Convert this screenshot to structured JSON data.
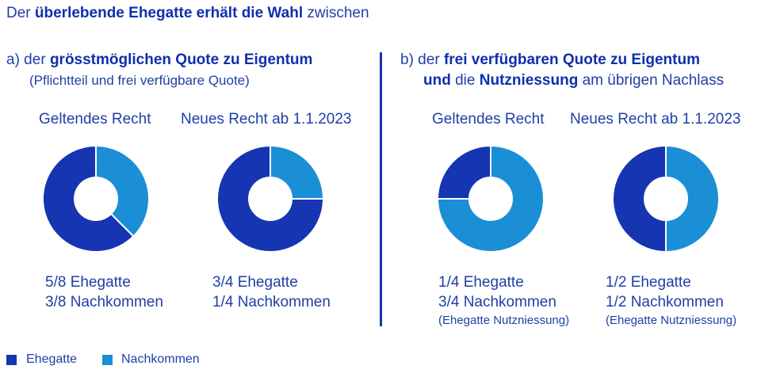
{
  "headline": {
    "pre": "Der ",
    "bold": "überlebende Ehegatte erhält die Wahl",
    "post": " zwischen"
  },
  "colors": {
    "ehegatte": "#1535b3",
    "nachkommen": "#1a8fd6",
    "text": "#1f3fa6"
  },
  "section_a": {
    "marker": "a)",
    "pre": " der ",
    "bold": "grösstmöglichen Quote zu Eigentum",
    "subtitle": "(Pflichtteil und frei verfügbare Quote)"
  },
  "section_b": {
    "marker": "b)",
    "pre": " der ",
    "bold1": "frei verfügbaren Quote zu Eigentum",
    "bold2": "und",
    "mid": " die ",
    "bold3": "Nutzniessung",
    "post": " am übrigen Nachlass"
  },
  "chart_data": [
    {
      "type": "pie",
      "title": "Geltendes Recht",
      "categories": [
        "Ehegatte",
        "Nachkommen"
      ],
      "values": [
        0.625,
        0.375
      ],
      "lines": [
        "5/8 Ehegatte",
        "3/8 Nachkommen"
      ],
      "note": ""
    },
    {
      "type": "pie",
      "title": "Neues Recht ab 1.1.2023",
      "categories": [
        "Ehegatte",
        "Nachkommen"
      ],
      "values": [
        0.75,
        0.25
      ],
      "lines": [
        "3/4 Ehegatte",
        "1/4 Nachkommen"
      ],
      "note": ""
    },
    {
      "type": "pie",
      "title": "Geltendes Recht",
      "categories": [
        "Ehegatte",
        "Nachkommen"
      ],
      "values": [
        0.25,
        0.75
      ],
      "lines": [
        "1/4 Ehegatte",
        "3/4 Nachkommen"
      ],
      "note": "(Ehegatte Nutzniessung)"
    },
    {
      "type": "pie",
      "title": "Neues Recht ab 1.1.2023",
      "categories": [
        "Ehegatte",
        "Nachkommen"
      ],
      "values": [
        0.5,
        0.5
      ],
      "lines": [
        "1/2 Ehegatte",
        "1/2 Nachkommen"
      ],
      "note": "(Ehegatte Nutzniessung)"
    }
  ],
  "legend": [
    {
      "label": "Ehegatte",
      "color": "#1535b3"
    },
    {
      "label": "Nachkommen",
      "color": "#1a8fd6"
    }
  ]
}
